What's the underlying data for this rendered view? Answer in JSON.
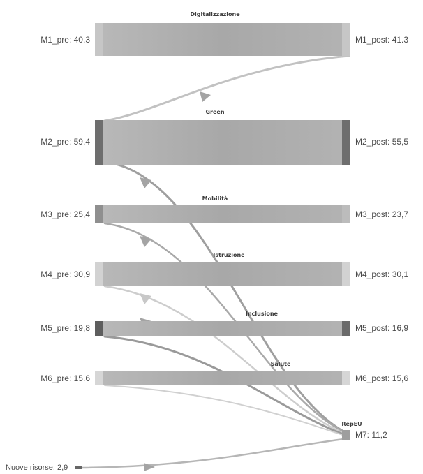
{
  "diagram": {
    "colors": {
      "band": "#a9a9a9",
      "band_light": "#bdbdbd",
      "node_dark": "#6b6b6b",
      "node_light": "#c9c9c9",
      "flow": "#b4b4b4",
      "arrow": "#9a9a9a",
      "text": "#4a4a4a"
    },
    "bands": [
      {
        "id": "m1",
        "title": "Digitalizzazione",
        "pre_label": "M1_pre: 40,3",
        "post_label": "M1_post: 41.3"
      },
      {
        "id": "m2",
        "title": "Green",
        "pre_label": "M2_pre: 59,4",
        "post_label": "M2_post: 55,5"
      },
      {
        "id": "m3",
        "title": "Mobilità",
        "pre_label": "M3_pre: 25,4",
        "post_label": "M3_post: 23,7"
      },
      {
        "id": "m4",
        "title": "Istruzione",
        "pre_label": "M4_pre: 30,9",
        "post_label": "M4_post: 30,1"
      },
      {
        "id": "m5",
        "title": "Inclusione",
        "pre_label": "M5_pre: 19,8",
        "post_label": "M5_post: 16,9"
      },
      {
        "id": "m6",
        "title": "Salute",
        "pre_label": "M6_pre: 15.6",
        "post_label": "M6_post: 15,6"
      }
    ],
    "target": {
      "title": "RepEU",
      "label": "M7: 11,2"
    },
    "source": {
      "label": "Nuove risorse: 2,9"
    }
  }
}
